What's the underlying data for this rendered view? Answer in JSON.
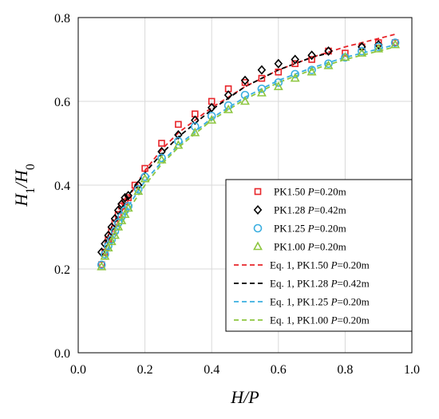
{
  "chart_data": {
    "type": "scatter",
    "title": "",
    "xlabel": {
      "parts": [
        {
          "text": "H/P",
          "italic": true
        }
      ]
    },
    "ylabel": {
      "parts": [
        {
          "text": "H",
          "italic": true
        },
        {
          "text": "1",
          "sub": true
        },
        {
          "text": "/",
          "italic": true
        },
        {
          "text": "H",
          "italic": true
        },
        {
          "text": "0",
          "sub": true
        }
      ]
    },
    "xlim": [
      0.0,
      1.0
    ],
    "ylim": [
      0.0,
      0.8
    ],
    "xticks": [
      "0.0",
      "0.2",
      "0.4",
      "0.6",
      "0.8",
      "1.0"
    ],
    "yticks": [
      "0.0",
      "0.2",
      "0.4",
      "0.6",
      "0.8"
    ],
    "grid": true,
    "legend_position": "bottom-right",
    "series": [
      {
        "name": "PK1.50 P=0.20m",
        "label_parts": [
          {
            "text": "PK1.50 "
          },
          {
            "text": "P",
            "italic": true
          },
          {
            "text": "=0.20m"
          }
        ],
        "kind": "points",
        "marker": "square",
        "color": "#e8252a",
        "x": [
          0.07,
          0.08,
          0.09,
          0.1,
          0.11,
          0.12,
          0.13,
          0.14,
          0.15,
          0.17,
          0.2,
          0.25,
          0.3,
          0.35,
          0.4,
          0.45,
          0.5,
          0.55,
          0.6,
          0.65,
          0.7,
          0.75,
          0.8,
          0.85,
          0.9,
          0.95
        ],
        "y": [
          0.21,
          0.24,
          0.27,
          0.29,
          0.31,
          0.33,
          0.35,
          0.36,
          0.37,
          0.4,
          0.44,
          0.5,
          0.545,
          0.57,
          0.6,
          0.63,
          0.645,
          0.655,
          0.67,
          0.69,
          0.7,
          0.72,
          0.715,
          0.73,
          0.74,
          0.74
        ]
      },
      {
        "name": "PK1.28 P=0.42m",
        "label_parts": [
          {
            "text": "PK1.28 "
          },
          {
            "text": "P",
            "italic": true
          },
          {
            "text": "=0.42m"
          }
        ],
        "kind": "points",
        "marker": "diamond",
        "color": "#000000",
        "x": [
          0.07,
          0.08,
          0.09,
          0.1,
          0.11,
          0.12,
          0.13,
          0.14,
          0.15,
          0.18,
          0.25,
          0.3,
          0.35,
          0.4,
          0.45,
          0.5,
          0.55,
          0.6,
          0.65,
          0.7,
          0.75,
          0.85,
          0.9
        ],
        "y": [
          0.24,
          0.26,
          0.28,
          0.3,
          0.32,
          0.34,
          0.355,
          0.37,
          0.375,
          0.4,
          0.48,
          0.52,
          0.555,
          0.585,
          0.615,
          0.65,
          0.675,
          0.69,
          0.7,
          0.71,
          0.72,
          0.73,
          0.735
        ]
      },
      {
        "name": "PK1.25 P=0.20m",
        "label_parts": [
          {
            "text": "PK1.25 "
          },
          {
            "text": "P",
            "italic": true
          },
          {
            "text": "=0.20m"
          }
        ],
        "kind": "points",
        "marker": "circle",
        "color": "#3aaee0",
        "x": [
          0.07,
          0.08,
          0.09,
          0.1,
          0.11,
          0.12,
          0.13,
          0.14,
          0.15,
          0.18,
          0.2,
          0.25,
          0.3,
          0.35,
          0.4,
          0.45,
          0.5,
          0.55,
          0.6,
          0.65,
          0.7,
          0.75,
          0.8,
          0.85,
          0.9,
          0.95
        ],
        "y": [
          0.21,
          0.235,
          0.255,
          0.27,
          0.29,
          0.31,
          0.325,
          0.34,
          0.35,
          0.39,
          0.42,
          0.465,
          0.505,
          0.54,
          0.565,
          0.59,
          0.615,
          0.63,
          0.645,
          0.665,
          0.675,
          0.69,
          0.705,
          0.72,
          0.73,
          0.74
        ]
      },
      {
        "name": "PK1.00 P=0.20m",
        "label_parts": [
          {
            "text": "PK1.00 "
          },
          {
            "text": "P",
            "italic": true
          },
          {
            "text": "=0.20m"
          }
        ],
        "kind": "points",
        "marker": "triangle",
        "color": "#8dc63f",
        "x": [
          0.07,
          0.08,
          0.09,
          0.1,
          0.11,
          0.12,
          0.13,
          0.14,
          0.15,
          0.18,
          0.2,
          0.25,
          0.3,
          0.35,
          0.4,
          0.45,
          0.5,
          0.55,
          0.6,
          0.65,
          0.7,
          0.75,
          0.8,
          0.85,
          0.9,
          0.95
        ],
        "y": [
          0.205,
          0.23,
          0.25,
          0.265,
          0.28,
          0.3,
          0.315,
          0.33,
          0.345,
          0.385,
          0.415,
          0.46,
          0.495,
          0.525,
          0.555,
          0.58,
          0.6,
          0.62,
          0.635,
          0.655,
          0.67,
          0.685,
          0.705,
          0.715,
          0.725,
          0.735
        ]
      },
      {
        "name": "Eq. 1, PK1.50 P=0.20m",
        "label_parts": [
          {
            "text": "Eq. 1, PK1.50 "
          },
          {
            "text": "P",
            "italic": true
          },
          {
            "text": "=0.20m"
          }
        ],
        "kind": "line",
        "color": "#e8252a",
        "x": [
          0.08,
          0.1,
          0.15,
          0.2,
          0.25,
          0.3,
          0.4,
          0.5,
          0.6,
          0.7,
          0.8,
          0.9,
          0.95
        ],
        "y": [
          0.245,
          0.285,
          0.37,
          0.435,
          0.485,
          0.525,
          0.585,
          0.635,
          0.675,
          0.705,
          0.73,
          0.75,
          0.76
        ]
      },
      {
        "name": "Eq. 1, PK1.28 P=0.42m",
        "label_parts": [
          {
            "text": "Eq. 1, PK1.28 "
          },
          {
            "text": "P",
            "italic": true
          },
          {
            "text": "=0.42m"
          }
        ],
        "kind": "line",
        "color": "#000000",
        "x": [
          0.08,
          0.1,
          0.15,
          0.2,
          0.25,
          0.3,
          0.4,
          0.5,
          0.6,
          0.7,
          0.75
        ],
        "y": [
          0.26,
          0.3,
          0.375,
          0.43,
          0.475,
          0.515,
          0.58,
          0.635,
          0.675,
          0.705,
          0.715
        ]
      },
      {
        "name": "Eq. 1, PK1.25 P=0.20m",
        "label_parts": [
          {
            "text": "Eq. 1, PK1.25 "
          },
          {
            "text": "P",
            "italic": true
          },
          {
            "text": "=0.20m"
          }
        ],
        "kind": "line",
        "color": "#3aaee0",
        "x": [
          0.08,
          0.1,
          0.15,
          0.2,
          0.25,
          0.3,
          0.4,
          0.5,
          0.6,
          0.7,
          0.8,
          0.9,
          0.95
        ],
        "y": [
          0.23,
          0.27,
          0.35,
          0.41,
          0.455,
          0.495,
          0.56,
          0.61,
          0.65,
          0.68,
          0.705,
          0.725,
          0.735
        ]
      },
      {
        "name": "Eq. 1, PK1.00 P=0.20m",
        "label_parts": [
          {
            "text": "Eq. 1, PK1.00 "
          },
          {
            "text": "P",
            "italic": true
          },
          {
            "text": "=0.20m"
          }
        ],
        "kind": "line",
        "color": "#8dc63f",
        "x": [
          0.08,
          0.1,
          0.15,
          0.2,
          0.25,
          0.3,
          0.4,
          0.5,
          0.6,
          0.7,
          0.8,
          0.9,
          0.95
        ],
        "y": [
          0.225,
          0.26,
          0.34,
          0.4,
          0.45,
          0.49,
          0.555,
          0.605,
          0.645,
          0.675,
          0.7,
          0.72,
          0.73
        ]
      }
    ]
  }
}
